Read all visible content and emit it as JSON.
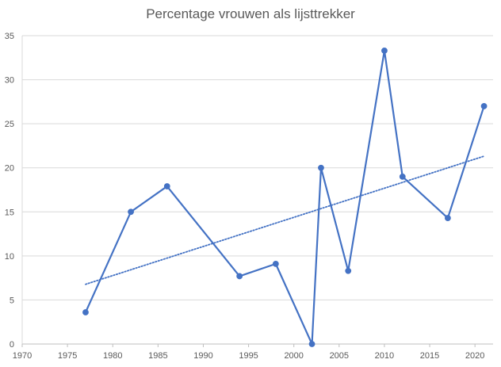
{
  "chart_data": {
    "type": "line",
    "title": "Percentage vrouwen als lijsttrekker",
    "xlabel": "",
    "ylabel": "",
    "xlim": [
      1970,
      2022
    ],
    "ylim": [
      0,
      35
    ],
    "x_ticks": [
      "1970",
      "1975",
      "1980",
      "1985",
      "1990",
      "1995",
      "2000",
      "2005",
      "2010",
      "2015",
      "2020"
    ],
    "y_ticks": [
      "0",
      "5",
      "10",
      "15",
      "20",
      "25",
      "30",
      "35"
    ],
    "grid": true,
    "series": [
      {
        "x": [
          1977,
          1982,
          1986,
          1994,
          1998,
          2002,
          2003,
          2006,
          2010,
          2012,
          2017,
          2021
        ],
        "values": [
          3.6,
          15.0,
          17.9,
          7.7,
          9.1,
          0.0,
          20.0,
          8.3,
          33.3,
          19.0,
          14.3,
          27.0
        ],
        "color": "#4472C4",
        "markers": true
      }
    ],
    "trendline": {
      "type": "linear",
      "color": "#4472C4",
      "style": "dotted",
      "x_start": 1977,
      "x_end": 2021
    },
    "legend": "none"
  }
}
